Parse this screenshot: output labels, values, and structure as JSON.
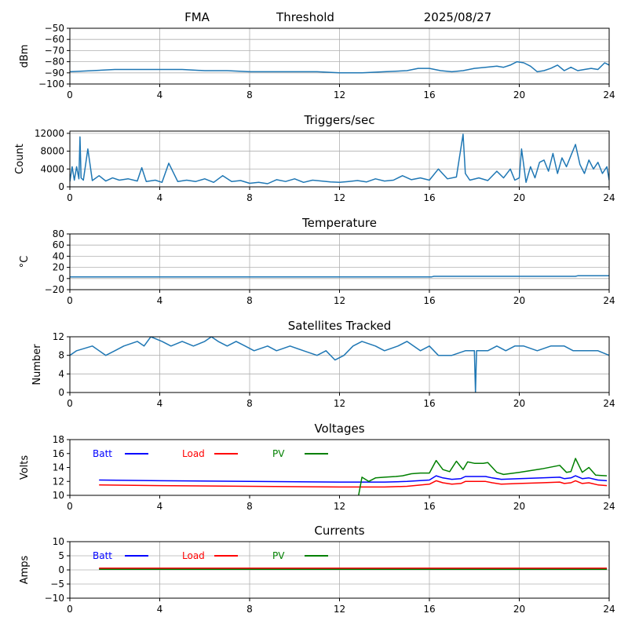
{
  "header": {
    "station": "FMA",
    "mode": "Threshold",
    "date": "2025/08/27"
  },
  "colors": {
    "series_default": "#1f77b4",
    "batt": "#0000ff",
    "load": "#ff0000",
    "pv": "#008000",
    "grid": "#b0b0b0"
  },
  "chart_data": [
    {
      "id": "threshold",
      "type": "line",
      "title": "",
      "ylabel": "dBm",
      "xlim": [
        0,
        24
      ],
      "ylim": [
        -100,
        -50
      ],
      "xticks": [
        0,
        4,
        8,
        12,
        16,
        20,
        24
      ],
      "yticks": [
        -100,
        -90,
        -80,
        -70,
        -60,
        -50
      ],
      "grid": true,
      "series": [
        {
          "color": "series_default",
          "x": [
            0,
            1,
            2,
            3,
            4,
            5,
            6,
            7,
            8,
            9,
            10,
            11,
            12,
            13,
            14,
            15,
            15.5,
            16,
            16.5,
            17,
            17.5,
            18,
            18.5,
            19,
            19.3,
            19.6,
            19.9,
            20.2,
            20.5,
            20.8,
            21.1,
            21.4,
            21.7,
            22.0,
            22.3,
            22.6,
            22.9,
            23.2,
            23.5,
            23.8,
            24
          ],
          "y": [
            -89,
            -88,
            -87,
            -87,
            -87,
            -87,
            -88,
            -88,
            -89,
            -89,
            -89,
            -89,
            -90,
            -90,
            -89,
            -88,
            -86,
            -86,
            -88,
            -89,
            -88,
            -86,
            -85,
            -84,
            -85,
            -83,
            -80,
            -81,
            -84,
            -89,
            -88,
            -86,
            -83,
            -88,
            -85,
            -88,
            -87,
            -86,
            -87,
            -81,
            -83
          ]
        }
      ]
    },
    {
      "id": "triggers",
      "type": "line",
      "title": "Triggers/sec",
      "ylabel": "Count",
      "xlim": [
        0,
        24
      ],
      "ylim": [
        0,
        12500
      ],
      "xticks": [
        0,
        4,
        8,
        12,
        16,
        20,
        24
      ],
      "yticks": [
        0,
        4000,
        8000,
        12000
      ],
      "grid": true,
      "series": [
        {
          "color": "series_default",
          "x": [
            0,
            0.1,
            0.2,
            0.3,
            0.4,
            0.45,
            0.5,
            0.6,
            0.8,
            1.0,
            1.3,
            1.6,
            1.9,
            2.2,
            2.6,
            3.0,
            3.2,
            3.4,
            3.8,
            4.1,
            4.4,
            4.8,
            5.2,
            5.6,
            6.0,
            6.4,
            6.8,
            7.2,
            7.6,
            8.0,
            8.4,
            8.8,
            9.2,
            9.6,
            10.0,
            10.4,
            10.8,
            11.2,
            11.6,
            12.0,
            12.4,
            12.8,
            13.2,
            13.6,
            14.0,
            14.4,
            14.8,
            15.2,
            15.6,
            16.0,
            16.4,
            16.8,
            17.2,
            17.5,
            17.6,
            17.8,
            18.2,
            18.6,
            19.0,
            19.3,
            19.6,
            19.8,
            20.0,
            20.1,
            20.3,
            20.5,
            20.7,
            20.9,
            21.1,
            21.3,
            21.5,
            21.7,
            21.9,
            22.1,
            22.3,
            22.5,
            22.7,
            22.9,
            23.1,
            23.3,
            23.5,
            23.7,
            23.9,
            24
          ],
          "y": [
            1200,
            4500,
            1500,
            4500,
            1800,
            11200,
            2000,
            1500,
            8500,
            1400,
            2500,
            1300,
            2000,
            1500,
            1800,
            1300,
            4300,
            1200,
            1500,
            1000,
            5300,
            1200,
            1500,
            1200,
            1800,
            1000,
            2500,
            1200,
            1400,
            800,
            1000,
            700,
            1600,
            1200,
            1800,
            1000,
            1500,
            1300,
            1100,
            1000,
            1200,
            1400,
            1100,
            1800,
            1300,
            1500,
            2500,
            1600,
            2000,
            1500,
            4000,
            1800,
            2200,
            11800,
            3000,
            1500,
            2000,
            1400,
            3500,
            2000,
            4000,
            1500,
            2000,
            8500,
            1000,
            4500,
            2000,
            5500,
            6000,
            3500,
            7500,
            3000,
            6500,
            4500,
            7000,
            9500,
            5000,
            3000,
            6000,
            4000,
            5500,
            3000,
            4500,
            1500
          ]
        }
      ]
    },
    {
      "id": "temperature",
      "type": "line",
      "title": "Temperature",
      "ylabel": "°C",
      "xlim": [
        0,
        24
      ],
      "ylim": [
        -20,
        80
      ],
      "xticks": [
        0,
        4,
        8,
        12,
        16,
        20,
        24
      ],
      "yticks": [
        -20,
        0,
        20,
        40,
        60,
        80
      ],
      "grid": true,
      "series": [
        {
          "color": "series_default",
          "x": [
            0,
            16.1,
            16.2,
            20,
            22.5,
            22.6,
            24
          ],
          "y": [
            3,
            3,
            4,
            4,
            4,
            5,
            5
          ]
        }
      ]
    },
    {
      "id": "satellites",
      "type": "line",
      "title": "Satellites Tracked",
      "ylabel": "Number",
      "xlim": [
        0,
        24
      ],
      "ylim": [
        0,
        12
      ],
      "xticks": [
        0,
        4,
        8,
        12,
        16,
        20,
        24
      ],
      "yticks": [
        0,
        4,
        8,
        12
      ],
      "grid": true,
      "series": [
        {
          "color": "series_default",
          "x": [
            0,
            0.3,
            1.0,
            1.6,
            2.0,
            2.4,
            3.0,
            3.3,
            3.6,
            4.1,
            4.5,
            5.0,
            5.5,
            6.0,
            6.3,
            6.6,
            7.0,
            7.4,
            7.8,
            8.2,
            8.8,
            9.2,
            9.8,
            10.4,
            11.0,
            11.4,
            11.8,
            12.2,
            12.6,
            13.0,
            13.6,
            14.0,
            14.6,
            15.0,
            15.6,
            16.0,
            16.4,
            17.0,
            17.6,
            18.0,
            18.05,
            18.1,
            18.6,
            19.0,
            19.4,
            19.8,
            20.2,
            20.8,
            21.4,
            22.0,
            22.4,
            23.0,
            23.5,
            24
          ],
          "y": [
            8,
            9,
            10,
            8,
            9,
            10,
            11,
            10,
            12,
            11,
            10,
            11,
            10,
            11,
            12,
            11,
            10,
            11,
            10,
            9,
            10,
            9,
            10,
            9,
            8,
            9,
            7,
            8,
            10,
            11,
            10,
            9,
            10,
            11,
            9,
            10,
            8,
            8,
            9,
            9,
            0,
            9,
            9,
            10,
            9,
            10,
            10,
            9,
            10,
            10,
            9,
            9,
            9,
            8
          ]
        }
      ]
    },
    {
      "id": "voltages",
      "type": "line",
      "title": "Voltages",
      "ylabel": "Volts",
      "xlim": [
        0,
        24
      ],
      "ylim": [
        10,
        18
      ],
      "xticks": [
        0,
        4,
        8,
        12,
        16,
        20,
        24
      ],
      "yticks": [
        10,
        12,
        14,
        16,
        18
      ],
      "grid": false,
      "legend": "top-left",
      "series": [
        {
          "name": "Batt",
          "color": "batt",
          "x": [
            1.3,
            4,
            8,
            12,
            14,
            15,
            16,
            16.3,
            16.6,
            17,
            17.4,
            17.6,
            18,
            18.5,
            18.8,
            19.2,
            20,
            21,
            21.8,
            22,
            22.3,
            22.5,
            22.8,
            23.1,
            23.5,
            23.9
          ],
          "y": [
            12.2,
            12.1,
            12.0,
            11.9,
            11.9,
            12.0,
            12.2,
            12.8,
            12.5,
            12.3,
            12.4,
            12.7,
            12.7,
            12.7,
            12.5,
            12.3,
            12.4,
            12.5,
            12.6,
            12.4,
            12.5,
            12.8,
            12.4,
            12.5,
            12.2,
            12.1
          ]
        },
        {
          "name": "Load",
          "color": "load",
          "x": [
            1.3,
            4,
            8,
            12,
            14,
            15,
            16,
            16.3,
            16.6,
            17,
            17.4,
            17.6,
            18,
            18.5,
            18.8,
            19.2,
            20,
            21,
            21.8,
            22,
            22.3,
            22.5,
            22.8,
            23.1,
            23.5,
            23.9
          ],
          "y": [
            11.5,
            11.4,
            11.3,
            11.2,
            11.2,
            11.3,
            11.6,
            12.1,
            11.8,
            11.6,
            11.7,
            12.0,
            12.0,
            12.0,
            11.8,
            11.6,
            11.7,
            11.8,
            11.9,
            11.7,
            11.8,
            12.1,
            11.7,
            11.8,
            11.5,
            11.4
          ]
        },
        {
          "name": "PV",
          "color": "pv",
          "x": [
            12.85,
            13.0,
            13.3,
            13.6,
            14.0,
            14.5,
            14.8,
            15.2,
            15.6,
            16.0,
            16.3,
            16.6,
            16.9,
            17.2,
            17.5,
            17.7,
            18.0,
            18.4,
            18.6,
            19.0,
            19.3,
            20.0,
            21.0,
            21.8,
            22.1,
            22.3,
            22.5,
            22.8,
            23.1,
            23.4,
            23.9
          ],
          "y": [
            10.0,
            12.6,
            12.0,
            12.5,
            12.6,
            12.7,
            12.8,
            13.1,
            13.2,
            13.2,
            15.0,
            13.7,
            13.4,
            14.9,
            13.7,
            14.8,
            14.6,
            14.6,
            14.7,
            13.3,
            13.0,
            13.3,
            13.8,
            14.3,
            13.3,
            13.4,
            15.3,
            13.3,
            14.0,
            12.9,
            12.8
          ]
        }
      ]
    },
    {
      "id": "currents",
      "type": "line",
      "title": "Currents",
      "ylabel": "Amps",
      "xlim": [
        0,
        24
      ],
      "ylim": [
        -10,
        10
      ],
      "xticks": [
        0,
        4,
        8,
        12,
        16,
        20,
        24
      ],
      "yticks": [
        -10,
        -5,
        0,
        5,
        10
      ],
      "grid": true,
      "legend": "top-left",
      "series": [
        {
          "name": "Batt",
          "color": "batt",
          "x": [
            1.3,
            23.9
          ],
          "y": [
            0.4,
            0.4
          ]
        },
        {
          "name": "Load",
          "color": "load",
          "x": [
            1.3,
            23.9
          ],
          "y": [
            0.6,
            0.6
          ]
        },
        {
          "name": "PV",
          "color": "pv",
          "x": [
            1.3,
            23.9
          ],
          "y": [
            0.2,
            0.2
          ]
        }
      ]
    }
  ]
}
